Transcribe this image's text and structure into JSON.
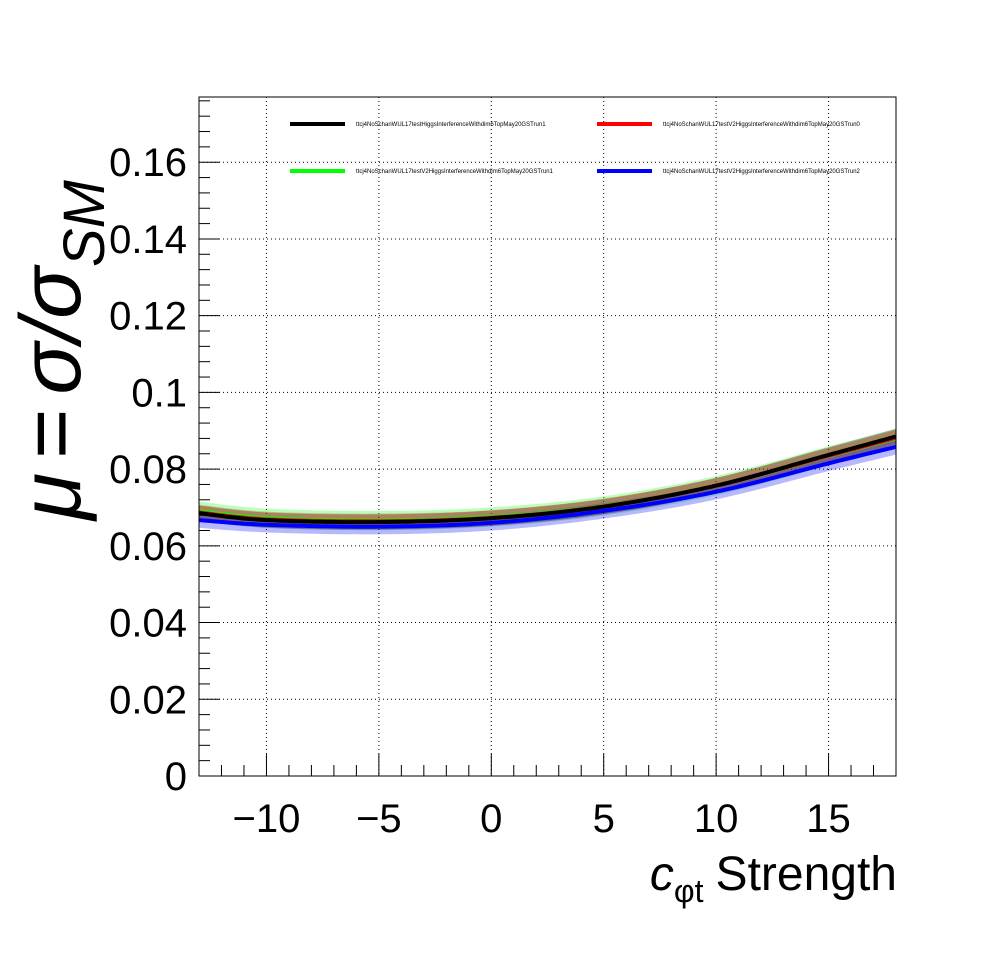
{
  "chart_data": {
    "type": "line",
    "title": "",
    "xlabel": {
      "symbol": "c",
      "subscript": "φt",
      "text": "Strength"
    },
    "ylabel": {
      "lhs": "μ",
      "rhs": "σ/σ",
      "subscript": "SM"
    },
    "xlim": [
      -13,
      18
    ],
    "ylim": [
      0,
      0.177
    ],
    "x_ticks": [
      -10,
      -5,
      0,
      5,
      10,
      15
    ],
    "x_tick_labels": [
      "−10",
      "−5",
      "0",
      "5",
      "10",
      "15"
    ],
    "y_ticks": [
      0,
      0.02,
      0.04,
      0.06,
      0.08,
      0.1,
      0.12,
      0.14,
      0.16
    ],
    "y_tick_labels": [
      "0",
      "0.02",
      "0.04",
      "0.06",
      "0.08",
      "0.1",
      "0.12",
      "0.14",
      "0.16"
    ],
    "grid": true,
    "legend_position": "top",
    "x": [
      -13,
      -10,
      -5,
      0,
      5,
      10,
      15,
      18
    ],
    "series": [
      {
        "name": "ttcj4NoSchanWUL17testHiggsInterferenceWithdim6TopMay20GSTrun1",
        "color": "#000000",
        "values": [
          0.0685,
          0.0667,
          0.0662,
          0.0672,
          0.0702,
          0.0757,
          0.0837,
          0.0885
        ],
        "band": 0.002
      },
      {
        "name": "ttcj4NoSchanWUL17testV2HiggsInterferenceWithdim6TopMay20GSTrun0",
        "color": "#ff0000",
        "values": [
          0.0687,
          0.0669,
          0.0664,
          0.0673,
          0.0703,
          0.0757,
          0.0835,
          0.0882
        ],
        "band": 0.002
      },
      {
        "name": "ttcj4NoSchanWUL17testV2HiggsInterferenceWithdim6TopMay20GSTrun1",
        "color": "#00ff00",
        "values": [
          0.069,
          0.0672,
          0.0666,
          0.0675,
          0.0704,
          0.0757,
          0.0834,
          0.088
        ],
        "band": 0.0025
      },
      {
        "name": "ttcj4NoSchanWUL17testV2HiggsInterferenceWithdim6TopMay20GSTrun2",
        "color": "#0000ff",
        "values": [
          0.0667,
          0.0655,
          0.065,
          0.066,
          0.0691,
          0.0741,
          0.0815,
          0.0858
        ],
        "band": 0.002
      }
    ]
  }
}
